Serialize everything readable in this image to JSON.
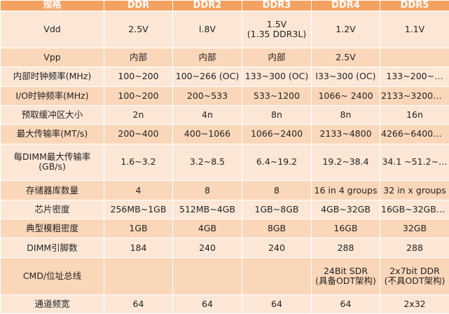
{
  "header": [
    "规格",
    "DDR",
    "DDR2",
    "DDR3",
    "DDR4",
    "DDR5"
  ],
  "rows": [
    [
      "Vdd",
      "2.5V",
      "l.8V",
      "1.5V\n(1.35 DDR3L)",
      "1.2V",
      "1.1V"
    ],
    [
      "Vpp",
      "内部",
      "内部",
      "内部",
      "2.5V",
      ""
    ],
    [
      "内部时钟频率(MHz)",
      "100~200",
      "100~266 (OC)",
      "133~300 (OC)",
      "l33~300 (OC)",
      "133~200~…"
    ],
    [
      "I/O时钟频率(MHz)",
      "100~200",
      "200~533",
      "533~1200",
      "1066~ 2400",
      "2133~3200~…"
    ],
    [
      "预取缓冲区大小",
      "2n",
      "4n",
      "8n",
      "8n",
      "16n"
    ],
    [
      "最大传输率(MT/s)",
      "200~400",
      "400~1066",
      "1066~2400",
      "2133~4800",
      "4266~6400~…"
    ],
    [
      "每DIMM最大传输率\n(GB/s)",
      "1.6~3.2",
      "3.2~8.5",
      "6.4~19.2",
      "19.2~38.4",
      "34.1 ~51.2~…"
    ],
    [
      "存储器库数量",
      "4",
      "8",
      "8",
      "16 in 4 groups",
      "32 in x groups"
    ],
    [
      "芯片密度",
      "256MB~1GB",
      "512MB~4GB",
      "1GB~8GB",
      "4GB~32GB",
      "16GB~32GB~…"
    ],
    [
      "典型模粗密度",
      "1GB",
      "4GB",
      "8GB",
      "16GB",
      "32GB"
    ],
    [
      "DIMM引脚数",
      "184",
      "240",
      "240",
      "288",
      "288"
    ],
    [
      "CMD/位址总线",
      "",
      "",
      "",
      "24Bit SDR\n(具备ODT架构)",
      "2x7bit DDR\n(不具ODT架构)"
    ],
    [
      "通道频宽",
      "64",
      "64",
      "64",
      "64",
      "2x32"
    ]
  ],
  "colors": {
    "header_bg": "#f4a261",
    "row_odd": "#fce7d7",
    "row_even": "#fbd7ba"
  }
}
